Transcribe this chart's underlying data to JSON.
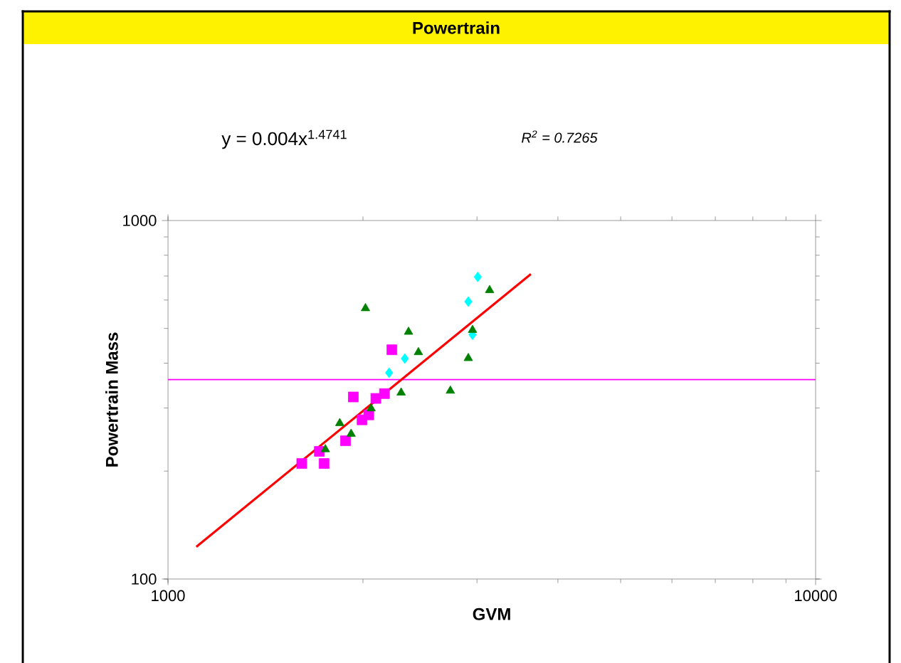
{
  "chart_data": {
    "type": "scatter",
    "title": "Powertrain",
    "xlabel": "GVM",
    "ylabel": "Powertrain Mass",
    "log": "xy",
    "grid": false,
    "xlim": [
      1000,
      10000
    ],
    "xticks": [
      1000,
      10000
    ],
    "ylim": [
      100,
      1000
    ],
    "yticks": [
      100,
      1000
    ],
    "annotations": [
      "y = 0.004x$^{1.4741}$",
      "R$^{2}$ = 0.7265"
    ],
    "ref_lines": [
      {
        "axis": "y",
        "value": 360,
        "color": "#ff00ff"
      }
    ],
    "series": [
      {
        "marker": "square",
        "color": "#ff00ff",
        "x": [
          1609,
          1713,
          1742,
          1880,
          1933,
          1994,
          2042,
          2094,
          2159,
          2217
        ],
        "values": [
          210,
          227,
          210,
          243,
          322,
          278,
          287,
          319,
          329,
          436
        ]
      },
      {
        "marker": "diamond",
        "color": "#00ffff",
        "x": [
          3009,
          2909,
          2953,
          2321,
          2195
        ],
        "values": [
          696,
          594,
          480,
          412,
          376
        ]
      },
      {
        "marker": "triangle",
        "color": "#008000",
        "x": [
          2018,
          2352,
          2436,
          2291,
          2729,
          2909,
          2953,
          3138,
          2059,
          1842,
          1918,
          1750
        ],
        "values": [
          569,
          489,
          429,
          331,
          335,
          413,
          495,
          639,
          299,
          272,
          254,
          230
        ]
      },
      {
        "type": "line",
        "marker": "none",
        "color": "#ff0000",
        "x": [
          1106,
          3634
        ],
        "values": [
          123,
          709
        ]
      }
    ]
  }
}
